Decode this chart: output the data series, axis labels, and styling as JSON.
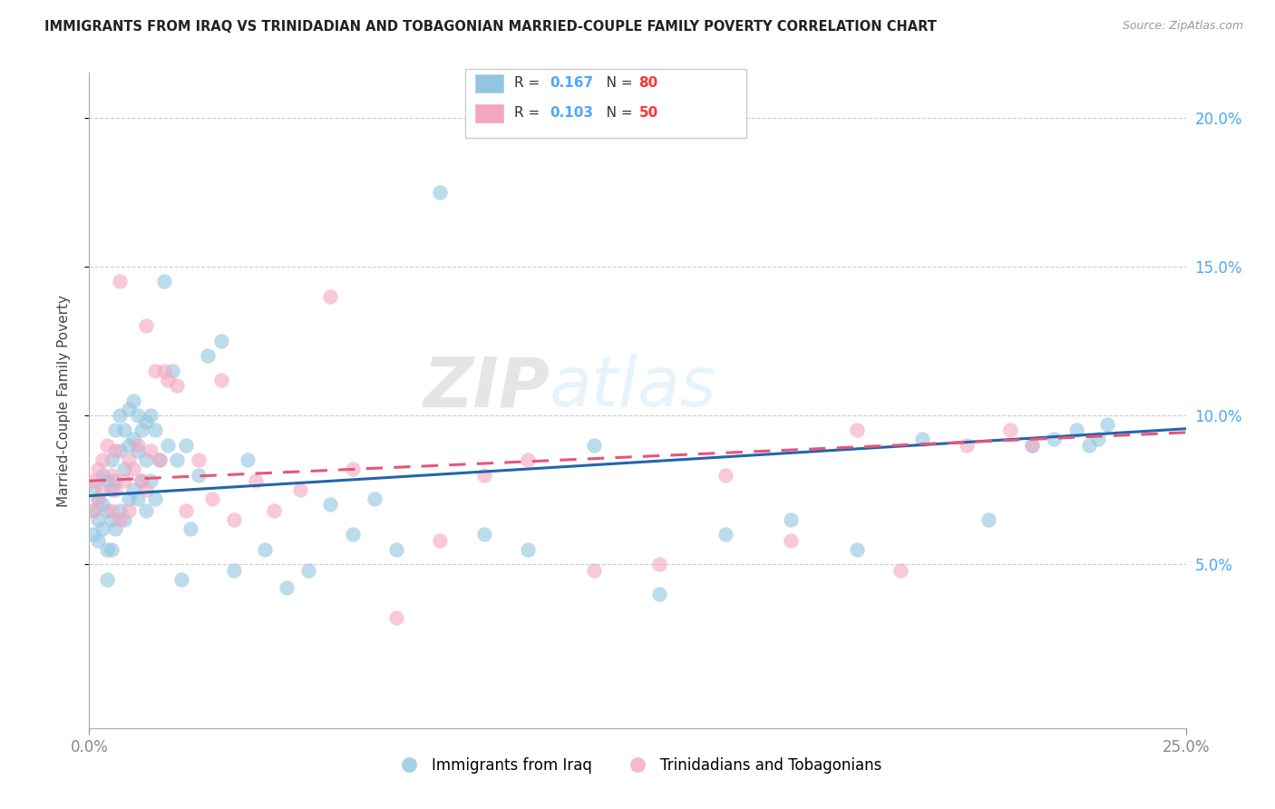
{
  "title": "IMMIGRANTS FROM IRAQ VS TRINIDADIAN AND TOBAGONIAN MARRIED-COUPLE FAMILY POVERTY CORRELATION CHART",
  "source": "Source: ZipAtlas.com",
  "ylabel": "Married-Couple Family Poverty",
  "ytick_labels": [
    "5.0%",
    "10.0%",
    "15.0%",
    "20.0%"
  ],
  "ytick_values": [
    0.05,
    0.1,
    0.15,
    0.2
  ],
  "xmin": 0.0,
  "xmax": 0.25,
  "ymin": -0.005,
  "ymax": 0.215,
  "legend1_r": "0.167",
  "legend1_n": "80",
  "legend2_r": "0.103",
  "legend2_n": "50",
  "color_iraq": "#92c5de",
  "color_tt": "#f4a6c0",
  "color_iraq_line": "#2166ac",
  "color_tt_line": "#e8547a",
  "watermark_zip": "ZIP",
  "watermark_atlas": "atlas",
  "iraq_x": [
    0.001,
    0.001,
    0.001,
    0.002,
    0.002,
    0.002,
    0.003,
    0.003,
    0.003,
    0.004,
    0.004,
    0.004,
    0.004,
    0.005,
    0.005,
    0.005,
    0.005,
    0.006,
    0.006,
    0.006,
    0.007,
    0.007,
    0.007,
    0.008,
    0.008,
    0.008,
    0.009,
    0.009,
    0.009,
    0.01,
    0.01,
    0.01,
    0.011,
    0.011,
    0.011,
    0.012,
    0.012,
    0.013,
    0.013,
    0.013,
    0.014,
    0.014,
    0.015,
    0.015,
    0.016,
    0.017,
    0.018,
    0.019,
    0.02,
    0.021,
    0.022,
    0.023,
    0.025,
    0.027,
    0.03,
    0.033,
    0.036,
    0.04,
    0.045,
    0.05,
    0.055,
    0.06,
    0.065,
    0.07,
    0.08,
    0.09,
    0.1,
    0.115,
    0.13,
    0.145,
    0.16,
    0.175,
    0.19,
    0.205,
    0.215,
    0.22,
    0.225,
    0.228,
    0.23,
    0.232
  ],
  "iraq_y": [
    0.076,
    0.068,
    0.06,
    0.072,
    0.065,
    0.058,
    0.08,
    0.07,
    0.062,
    0.078,
    0.068,
    0.055,
    0.045,
    0.085,
    0.075,
    0.065,
    0.055,
    0.095,
    0.078,
    0.062,
    0.1,
    0.088,
    0.068,
    0.095,
    0.082,
    0.065,
    0.102,
    0.09,
    0.072,
    0.105,
    0.092,
    0.075,
    0.1,
    0.088,
    0.072,
    0.095,
    0.078,
    0.098,
    0.085,
    0.068,
    0.1,
    0.078,
    0.095,
    0.072,
    0.085,
    0.145,
    0.09,
    0.115,
    0.085,
    0.045,
    0.09,
    0.062,
    0.08,
    0.12,
    0.125,
    0.048,
    0.085,
    0.055,
    0.042,
    0.048,
    0.07,
    0.06,
    0.072,
    0.055,
    0.175,
    0.06,
    0.055,
    0.09,
    0.04,
    0.06,
    0.065,
    0.055,
    0.092,
    0.065,
    0.09,
    0.092,
    0.095,
    0.09,
    0.092,
    0.097
  ],
  "tt_x": [
    0.001,
    0.001,
    0.002,
    0.002,
    0.003,
    0.003,
    0.004,
    0.005,
    0.005,
    0.006,
    0.006,
    0.007,
    0.007,
    0.008,
    0.009,
    0.009,
    0.01,
    0.011,
    0.012,
    0.013,
    0.013,
    0.014,
    0.015,
    0.016,
    0.017,
    0.018,
    0.02,
    0.022,
    0.025,
    0.028,
    0.03,
    0.033,
    0.038,
    0.042,
    0.048,
    0.055,
    0.06,
    0.07,
    0.08,
    0.09,
    0.1,
    0.115,
    0.13,
    0.145,
    0.16,
    0.175,
    0.185,
    0.2,
    0.21,
    0.215
  ],
  "tt_y": [
    0.078,
    0.068,
    0.082,
    0.072,
    0.085,
    0.075,
    0.09,
    0.08,
    0.068,
    0.088,
    0.075,
    0.145,
    0.065,
    0.078,
    0.085,
    0.068,
    0.082,
    0.09,
    0.078,
    0.13,
    0.075,
    0.088,
    0.115,
    0.085,
    0.115,
    0.112,
    0.11,
    0.068,
    0.085,
    0.072,
    0.112,
    0.065,
    0.078,
    0.068,
    0.075,
    0.14,
    0.082,
    0.032,
    0.058,
    0.08,
    0.085,
    0.048,
    0.05,
    0.08,
    0.058,
    0.095,
    0.048,
    0.09,
    0.095,
    0.09
  ]
}
